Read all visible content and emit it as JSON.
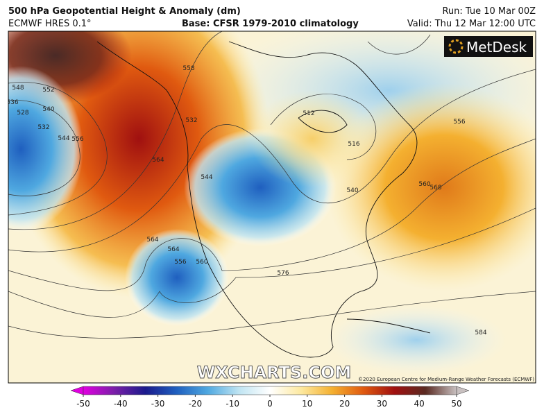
{
  "header": {
    "title": "500 hPa Geopotential Height & Anomaly (dm)",
    "model": "ECMWF HRES 0.1°",
    "base": "Base: CFSR 1979-2010 climatology",
    "run": "Run: Tue 10 Mar 00Z",
    "valid": "Valid: Thu 12 Mar 12:00 UTC"
  },
  "logo": "MetDesk",
  "watermark": "WXCHARTS.COM",
  "copyright": "©2020 European Centre for Medium-Range Weather Forecasts (ECMWF)",
  "contour_labels": [
    "548",
    "552",
    "536",
    "528",
    "540",
    "532",
    "544",
    "556",
    "564",
    "558",
    "564",
    "532",
    "544",
    "512",
    "516",
    "540",
    "556",
    "560",
    "568",
    "564",
    "556",
    "560",
    "576",
    "584"
  ],
  "colorbar": {
    "ticks": [
      -50,
      -40,
      -30,
      -20,
      -10,
      0,
      10,
      20,
      30,
      40,
      50
    ],
    "colors": [
      "#e000e0",
      "#7a1fa8",
      "#1a1a8c",
      "#1f5fbf",
      "#4fa8e0",
      "#bfe4f2",
      "#ffffff",
      "#fde9a0",
      "#f4b030",
      "#e05a10",
      "#a01010",
      "#5a2a22",
      "#c8c0c0"
    ]
  }
}
